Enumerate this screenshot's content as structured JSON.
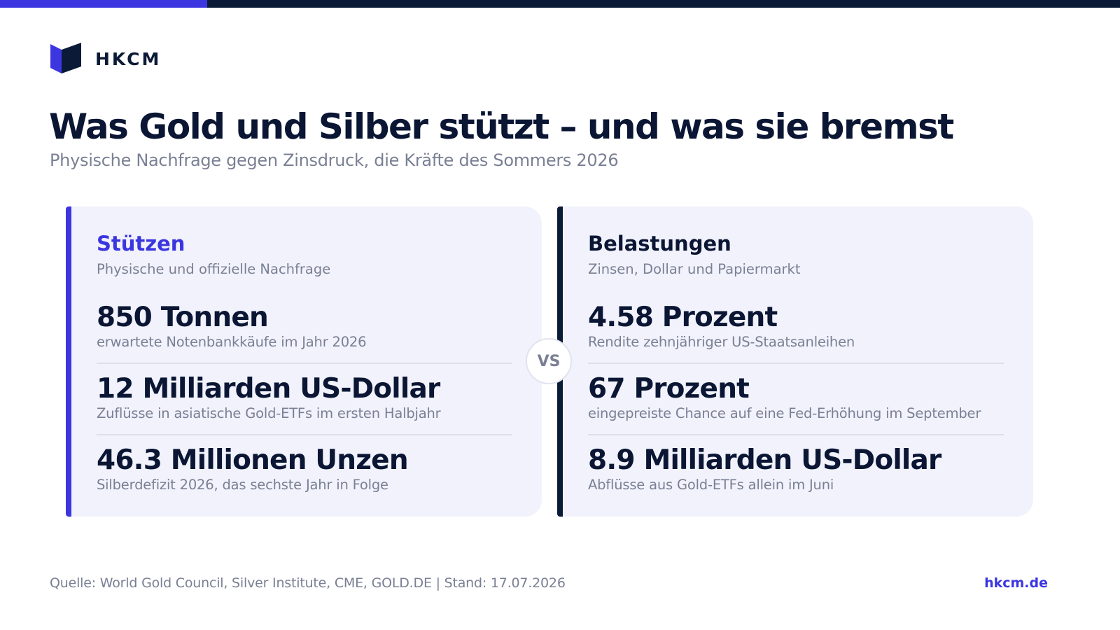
{
  "brand": {
    "name": "HKCM",
    "accent_color": "#3b36e0",
    "dark_color": "#0b1a36",
    "logo_icon": "hkcm-logo-icon"
  },
  "header": {
    "title": "Was Gold und Silber stützt – und was sie bremst",
    "subtitle": "Physische Nachfrage gegen Zinsdruck, die Kräfte des Sommers 2026"
  },
  "support": {
    "title": "Stützen",
    "subtitle": "Physische und offizielle Nachfrage",
    "stats": [
      {
        "value": "850 Tonnen",
        "description": "erwartete Notenbankkäufe im Jahr 2026"
      },
      {
        "value": "12 Milliarden US-Dollar",
        "description": "Zuflüsse in asiatische Gold-ETFs im ersten Halbjahr"
      },
      {
        "value": "46.3 Millionen Unzen",
        "description": "Silberdefizit 2026, das sechste Jahr in Folge"
      }
    ]
  },
  "burden": {
    "title": "Belastungen",
    "subtitle": "Zinsen, Dollar und Papiermarkt",
    "stats": [
      {
        "value": "4.58 Prozent",
        "description": "Rendite zehnjähriger US-Staatsanleihen"
      },
      {
        "value": "67 Prozent",
        "description": "eingepreiste Chance auf eine Fed-Erhöhung im September"
      },
      {
        "value": "8.9 Milliarden US-Dollar",
        "description": "Abflüsse aus Gold-ETFs allein im Juni"
      }
    ]
  },
  "vs_label": "VS",
  "footer": {
    "source": "Quelle: World Gold Council, Silver Institute, CME, GOLD.DE  |  Stand: 17.07.2026",
    "link": "hkcm.de"
  }
}
